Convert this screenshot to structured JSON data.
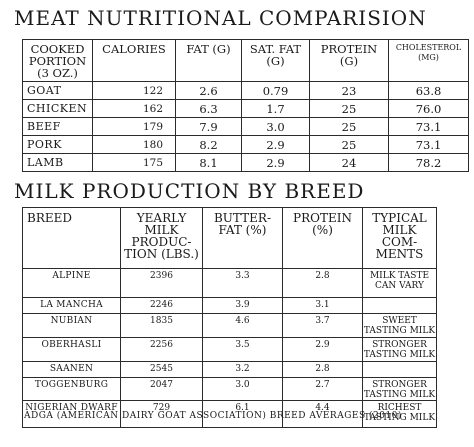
{
  "meat": {
    "title": "MEAT NUTRITIONAL COMPARISION",
    "headers": [
      "COOKED PORTION (3 OZ.)",
      "CALORIES",
      "FAT (G)",
      "SAT. FAT (G)",
      "PROTEIN (G)",
      "CHOLESTEROL (MG)"
    ],
    "rows": [
      {
        "name": "GOAT",
        "calories": "122",
        "fat": "2.6",
        "sat_fat": "0.79",
        "protein": "23",
        "cholesterol": "63.8"
      },
      {
        "name": "CHICKEN",
        "calories": "162",
        "fat": "6.3",
        "sat_fat": "1.7",
        "protein": "25",
        "cholesterol": "76.0"
      },
      {
        "name": "BEEF",
        "calories": "179",
        "fat": "7.9",
        "sat_fat": "3.0",
        "protein": "25",
        "cholesterol": "73.1"
      },
      {
        "name": "PORK",
        "calories": "180",
        "fat": "8.2",
        "sat_fat": "2.9",
        "protein": "25",
        "cholesterol": "73.1"
      },
      {
        "name": "LAMB",
        "calories": "175",
        "fat": "8.1",
        "sat_fat": "2.9",
        "protein": "24",
        "cholesterol": "78.2"
      }
    ]
  },
  "milk": {
    "title": "MILK PRODUCTION BY BREED",
    "headers": [
      "BREED",
      "YEARLY MILK PRODUC- TION (LBS.)",
      "BUTTER- FAT (%)",
      "PROTEIN (%)",
      "TYPICAL MILK COM- MENTS"
    ],
    "rows": [
      {
        "breed": "ALPINE",
        "yield": "2396",
        "butterfat": "3.3",
        "protein": "2.8",
        "comment": "MILK TASTE CAN VARY"
      },
      {
        "breed": "LA MANCHA",
        "yield": "2246",
        "butterfat": "3.9",
        "protein": "3.1",
        "comment": ""
      },
      {
        "breed": "NUBIAN",
        "yield": "1835",
        "butterfat": "4.6",
        "protein": "3.7",
        "comment": "SWEET TASTING MILK"
      },
      {
        "breed": "OBERHASLI",
        "yield": "2256",
        "butterfat": "3.5",
        "protein": "2.9",
        "comment": "STRONGER TASTING MILK"
      },
      {
        "breed": "SAANEN",
        "yield": "2545",
        "butterfat": "3.2",
        "protein": "2.8",
        "comment": ""
      },
      {
        "breed": "TOGGENBURG",
        "yield": "2047",
        "butterfat": "3.0",
        "protein": "2.7",
        "comment": "STRONGER TASTING MILK"
      },
      {
        "breed": "NIGERIAN DWARF",
        "yield": "729",
        "butterfat": "6.1",
        "protein": "4.4",
        "comment": "RICHEST TASTING MILK"
      }
    ],
    "footer": "ADGA (AMERICAN DAIRY GOAT ASSOCIATION) BREED AVERAGES (2010)"
  }
}
